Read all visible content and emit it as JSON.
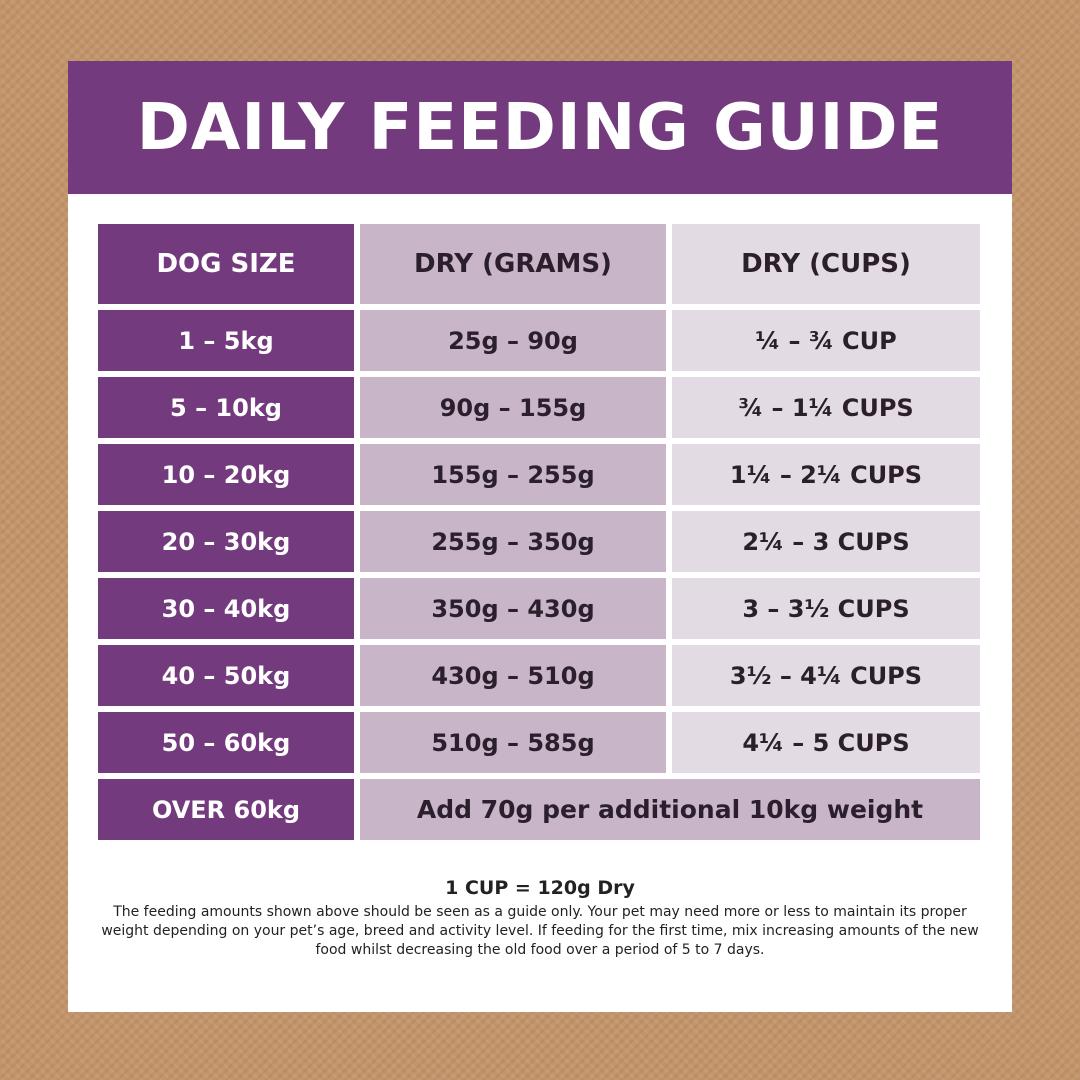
{
  "header": {
    "title": "DAILY FEEDING GUIDE"
  },
  "table": {
    "columns": [
      "DOG SIZE",
      "DRY (GRAMS)",
      "DRY (CUPS)"
    ],
    "rows": [
      [
        "1 – 5kg",
        "25g – 90g",
        "¼ – ¾ CUP"
      ],
      [
        "5 – 10kg",
        "90g – 155g",
        "¾ – 1¼ CUPS"
      ],
      [
        "10 – 20kg",
        "155g – 255g",
        "1¼ – 2¼ CUPS"
      ],
      [
        "20 – 30kg",
        "255g – 350g",
        "2¼ – 3 CUPS"
      ],
      [
        "30 – 40kg",
        "350g – 430g",
        "3 – 3½ CUPS"
      ],
      [
        "40 – 50kg",
        "430g – 510g",
        "3½ – 4¼ CUPS"
      ],
      [
        "50 – 60kg",
        "510g – 585g",
        "4¼ – 5 CUPS"
      ]
    ],
    "last_row": [
      "OVER 60kg",
      "Add 70g per additional 10kg weight"
    ]
  },
  "notes": {
    "conversion": "1 CUP = 120g Dry",
    "text": "The feeding amounts shown above should be seen as a guide only. Your pet may need more or less to maintain its proper weight depending on your pet’s age, breed and activity level. If feeding for the first time, mix increasing amounts of the new food whilst decreasing the old food over a period of 5 to 7 days."
  }
}
